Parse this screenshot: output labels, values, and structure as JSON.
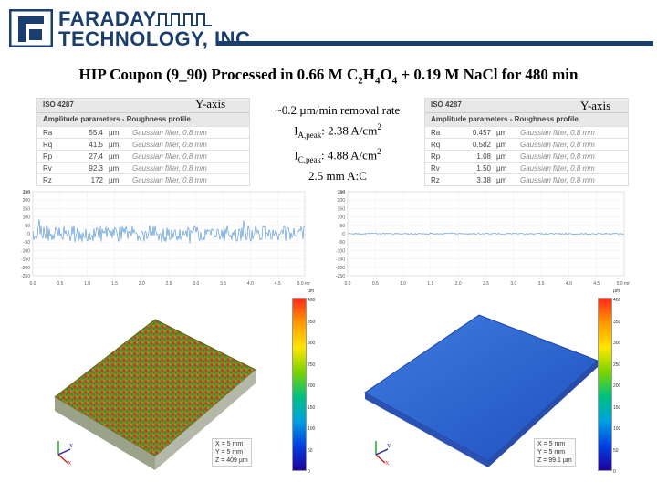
{
  "header": {
    "company_line1": "FARADAY",
    "company_line2": "TECHNOLOGY, INC.",
    "brand_color": "#1a3f6e"
  },
  "slide": {
    "title_a": "HIP Coupon (9_90) Processed in 0.66 M C",
    "title_sub1": "2",
    "title_b": "H",
    "title_sub2": "4",
    "title_c": "O",
    "title_sub3": "4",
    "title_d": " + 0.19 M NaCl for 480 min"
  },
  "left_panel": {
    "yaxis_label": "Y-axis",
    "table_title": "ISO 4287",
    "section_label": "Amplitude parameters - Roughness profile",
    "rows": [
      {
        "param": "Ra",
        "value": "55.4",
        "unit": "µm",
        "filter": "Gaussian filter, 0.8 mm"
      },
      {
        "param": "Rq",
        "value": "41.5",
        "unit": "µm",
        "filter": "Gaussian filter, 0.8 mm"
      },
      {
        "param": "Rp",
        "value": "27.4",
        "unit": "µm",
        "filter": "Gaussian filter, 0.8 mm"
      },
      {
        "param": "Rv",
        "value": "92.3",
        "unit": "µm",
        "filter": "Gaussian filter, 0.8 mm"
      },
      {
        "param": "Rz",
        "value": "172",
        "unit": "µm",
        "filter": "Gaussian filter, 0.8 mm"
      }
    ],
    "profile_yticks": [
      "µm",
      "250",
      "200",
      "150",
      "100",
      "50",
      "0",
      "-50",
      "-100",
      "-150",
      "-200",
      "-250"
    ],
    "profile_xticks": [
      "0.0",
      "0.5",
      "1.0",
      "1.5",
      "2.0",
      "2.5",
      "3.0",
      "3.5",
      "4.0",
      "4.5",
      "5.0 mm"
    ],
    "colorbar_ticks": [
      "µm",
      "400",
      "350",
      "300",
      "250",
      "200",
      "150",
      "100",
      "50",
      "0"
    ],
    "dims": [
      "X = 5 mm",
      "Y = 5 mm",
      "Z = 409 µm"
    ],
    "axis_x": "X",
    "axis_y": "Y"
  },
  "center_text": {
    "line1": "~0.2 µm/min removal rate",
    "ia_prefix": "I",
    "ia_sub": "A,peak",
    "ia_value": ": 2.38 A/cm",
    "ia_sup": "2",
    "ic_prefix": "I",
    "ic_sub": "C,peak",
    "ic_value": ": 4.88 A/cm",
    "ic_sup": "2",
    "line4": "2.5 mm A:C"
  },
  "right_panel": {
    "yaxis_label": "Y-axis",
    "table_title": "ISO 4287",
    "section_label": "Amplitude parameters - Roughness profile",
    "rows": [
      {
        "param": "Ra",
        "value": "0.457",
        "unit": "µm",
        "filter": "Gaussian filter, 0.8 mm"
      },
      {
        "param": "Rq",
        "value": "0.582",
        "unit": "µm",
        "filter": "Gaussian filter, 0.8 mm"
      },
      {
        "param": "Rp",
        "value": "1.08",
        "unit": "µm",
        "filter": "Gaussian filter, 0.8 mm"
      },
      {
        "param": "Rv",
        "value": "1.50",
        "unit": "µm",
        "filter": "Gaussian filter, 0.8 mm"
      },
      {
        "param": "Rz",
        "value": "3.38",
        "unit": "µm",
        "filter": "Gaussian filter, 0.8 mm"
      }
    ],
    "profile_yticks": [
      "µm",
      "250",
      "200",
      "150",
      "100",
      "50",
      "0",
      "-50",
      "-100",
      "-150",
      "-200",
      "-250"
    ],
    "profile_xticks": [
      "0.0",
      "0.5",
      "1.0",
      "1.5",
      "2.0",
      "2.5",
      "3.0",
      "3.5",
      "4.0",
      "4.5",
      "5.0 mm"
    ],
    "colorbar_ticks": [
      "µm",
      "400",
      "350",
      "300",
      "250",
      "200",
      "150",
      "100",
      "50",
      "0"
    ],
    "dims": [
      "X = 5 mm",
      "Y = 5 mm",
      "Z = 99.1 µm"
    ],
    "axis_x": "X",
    "axis_y": "Y"
  }
}
